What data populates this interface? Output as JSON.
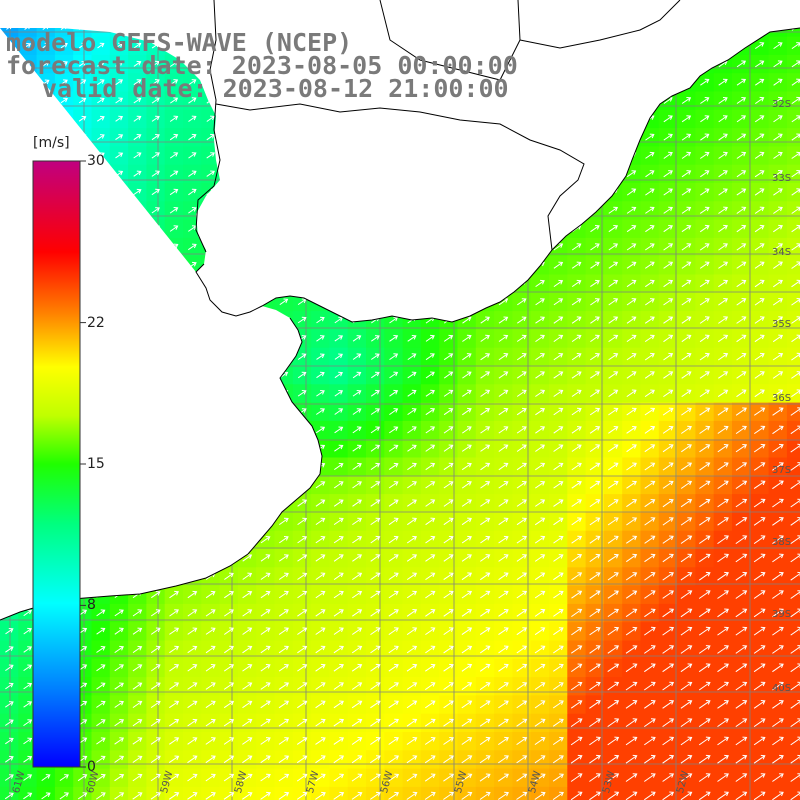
{
  "title": {
    "line1": "modelo GEFS-WAVE (NCEP)",
    "line2": "forecast date: 2023-08-05 00:00:00",
    "line3": "valid date: 2023-08-12 21:00:00"
  },
  "colorbar": {
    "unit": "[m/s]",
    "ticks": [
      {
        "value": 30,
        "label": "30"
      },
      {
        "value": 22,
        "label": "22"
      },
      {
        "value": 15,
        "label": "15"
      },
      {
        "value": 8,
        "label": "8"
      },
      {
        "value": 0,
        "label": "0"
      }
    ],
    "range": [
      0,
      30
    ]
  },
  "map": {
    "latitude_labels": [
      "32S",
      "33S",
      "34S",
      "35S",
      "36S",
      "37S",
      "38S",
      "39S",
      "40S"
    ],
    "longitude_labels": [
      "61W",
      "60W",
      "59W",
      "58W",
      "57W",
      "56W",
      "55W",
      "54W",
      "53W",
      "52W"
    ]
  },
  "colors": {
    "land": "#ffffff",
    "coastline": "#000000",
    "grid": "#808080",
    "arrows": "#ffffff",
    "title": "#7a7a7a"
  }
}
